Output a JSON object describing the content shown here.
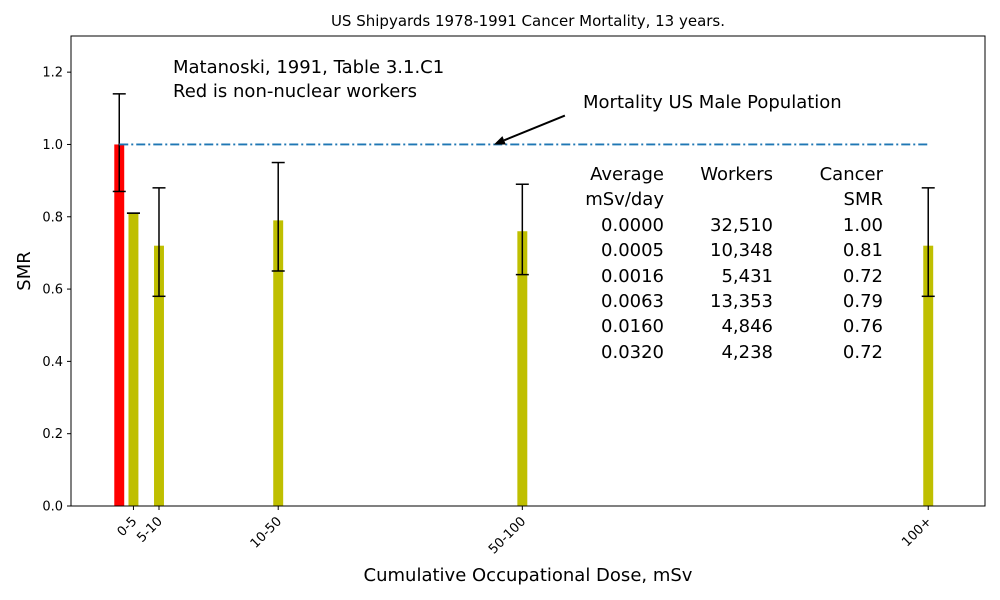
{
  "chart_data": {
    "type": "bar",
    "title": "US Shipyards 1978-1991 Cancer Mortality, 13 years.",
    "xlabel": "Cumulative Occupational Dose, mSv",
    "ylabel": "SMR",
    "ylim": [
      0,
      1.3
    ],
    "xlim": [
      -1.7,
      30.5
    ],
    "yticks": [
      0.0,
      0.2,
      0.4,
      0.6,
      0.8,
      1.0,
      1.2
    ],
    "ytick_labels": [
      "0.0",
      "0.2",
      "0.4",
      "0.6",
      "0.8",
      "1.0",
      "1.2"
    ],
    "bars": [
      {
        "x": 0.0,
        "value": 1.0,
        "err_low": 0.87,
        "err_high": 1.14,
        "color": "#ff0000"
      },
      {
        "x": 0.5,
        "value": 0.81,
        "err_low": 0.81,
        "err_high": 0.81,
        "color": "#bfbf00"
      },
      {
        "x": 1.4,
        "value": 0.72,
        "err_low": 0.58,
        "err_high": 0.88,
        "color": "#bfbf00"
      },
      {
        "x": 5.6,
        "value": 0.79,
        "err_low": 0.65,
        "err_high": 0.95,
        "color": "#bfbf00"
      },
      {
        "x": 14.2,
        "value": 0.76,
        "err_low": 0.64,
        "err_high": 0.89,
        "color": "#bfbf00"
      },
      {
        "x": 28.5,
        "value": 0.72,
        "err_low": 0.58,
        "err_high": 0.88,
        "color": "#bfbf00"
      }
    ],
    "bar_width": 0.35,
    "xticks": [
      {
        "x": 0.5,
        "label": "0-5"
      },
      {
        "x": 1.4,
        "label": "5-10"
      },
      {
        "x": 5.6,
        "label": "10-50"
      },
      {
        "x": 14.2,
        "label": "50-100"
      },
      {
        "x": 28.5,
        "label": "100+"
      }
    ],
    "reference_line": {
      "y": 1.0,
      "x_start": 0.0,
      "x_end": 28.5,
      "color": "#1f77b4",
      "style": "dash-dot"
    },
    "annotations": {
      "source_line1": "Matanoski, 1991, Table 3.1.C1",
      "source_line2": "Red is non-nuclear workers",
      "population_label": "Mortality US Male Population",
      "arrow_target": {
        "x": 13.2,
        "y": 1.0
      },
      "arrow_text_anchor": {
        "x": 15.7,
        "y": 1.08
      }
    },
    "table": {
      "headers": [
        {
          "line1": "Average",
          "line2": "mSv/day"
        },
        {
          "line1": "Workers",
          "line2": ""
        },
        {
          "line1": "Cancer",
          "line2": "SMR"
        }
      ],
      "rows": [
        [
          "0.0000",
          "32,510",
          "1.00"
        ],
        [
          "0.0005",
          "10,348",
          "0.81"
        ],
        [
          "0.0016",
          "5,431",
          "0.72"
        ],
        [
          "0.0063",
          "13,353",
          "0.79"
        ],
        [
          "0.0160",
          "4,846",
          "0.76"
        ],
        [
          "0.0320",
          "4,238",
          "0.72"
        ]
      ]
    },
    "grid": false,
    "legend": "none"
  }
}
